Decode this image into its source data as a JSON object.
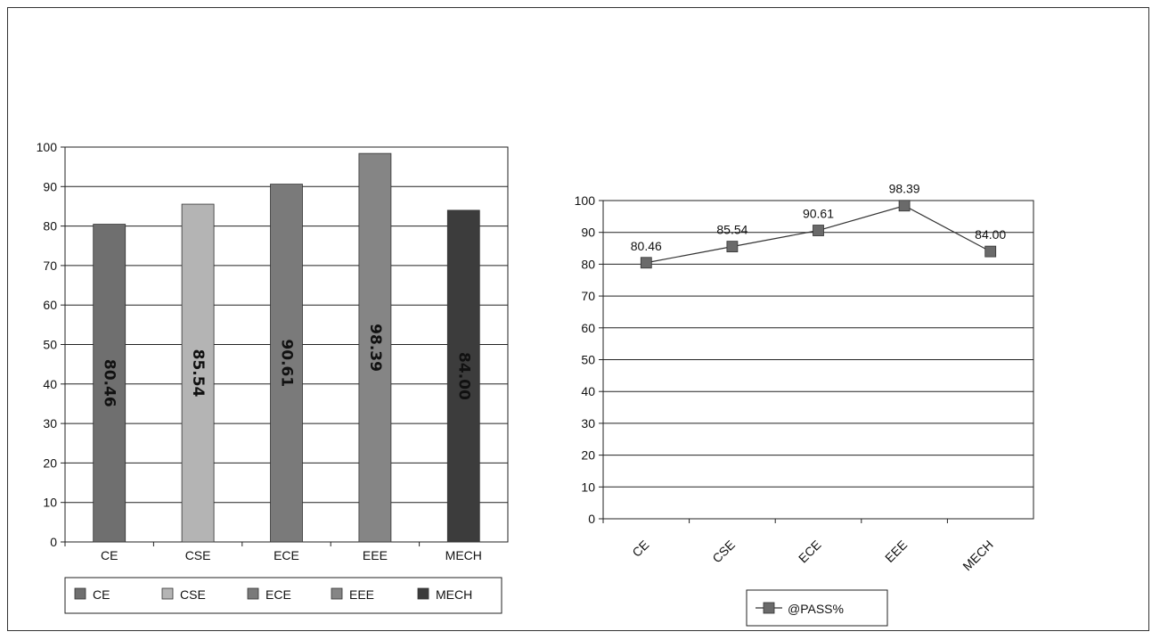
{
  "chart_data": [
    {
      "type": "bar",
      "categories": [
        "CE",
        "CSE",
        "ECE",
        "EEE",
        "MECH"
      ],
      "values": [
        80.46,
        85.54,
        90.61,
        98.39,
        84.0
      ],
      "value_labels": [
        "80.46",
        "85.54",
        "90.61",
        "98.39",
        "84.00"
      ],
      "ylim": [
        0,
        100
      ],
      "yticks": [
        "0",
        "10",
        "20",
        "30",
        "40",
        "50",
        "60",
        "70",
        "80",
        "90",
        "100"
      ],
      "grid": true,
      "legend": {
        "position": "bottom",
        "entries": [
          "CE",
          "CSE",
          "ECE",
          "EEE",
          "MECH"
        ]
      },
      "colors": [
        "#6f6f6f",
        "#b4b4b4",
        "#7a7a7a",
        "#858585",
        "#3c3c3c"
      ]
    },
    {
      "type": "line",
      "categories": [
        "CE",
        "CSE",
        "ECE",
        "EEE",
        "MECH"
      ],
      "series": [
        {
          "name": "@PASS%",
          "values": [
            80.46,
            85.54,
            90.61,
            98.39,
            84.0
          ],
          "value_labels": [
            "80.46",
            "85.54",
            "90.61",
            "98.39",
            "84.00"
          ]
        }
      ],
      "ylim": [
        0,
        100
      ],
      "yticks": [
        "0",
        "10",
        "20",
        "30",
        "40",
        "50",
        "60",
        "70",
        "80",
        "90",
        "100"
      ],
      "grid": true,
      "legend": {
        "position": "bottom",
        "entries": [
          "@PASS%"
        ]
      },
      "marker_color": "#6a6a6a"
    }
  ]
}
